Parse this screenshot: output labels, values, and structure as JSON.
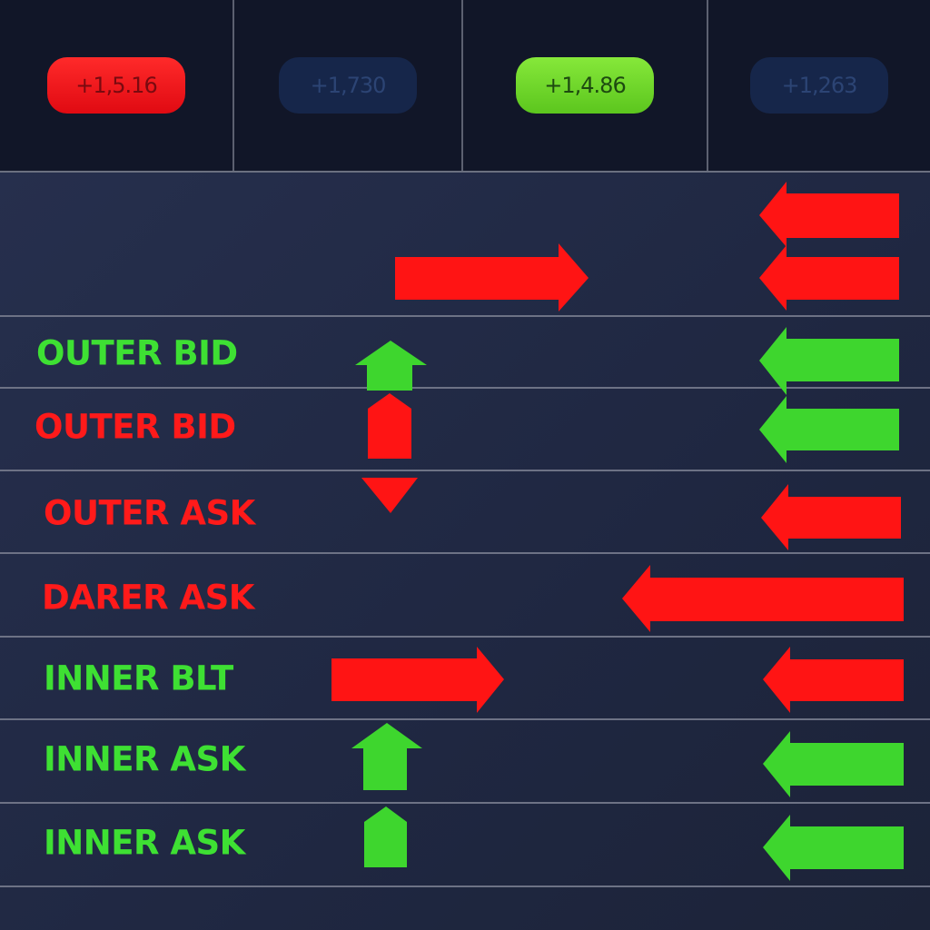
{
  "colors": {
    "background": "#111628",
    "panel": "#232b47",
    "red": "#ff1414",
    "green": "#3ed62e",
    "navy_badge": "#16264a",
    "divider": "#6d7285"
  },
  "header": {
    "tickers": [
      {
        "value": "+1,5.16",
        "style": "red"
      },
      {
        "value": "+1,730",
        "style": "navy"
      },
      {
        "value": "+1,4.86",
        "style": "green"
      },
      {
        "value": "+1,263",
        "style": "navy"
      }
    ]
  },
  "rows": [
    {
      "label": "",
      "color": "none",
      "icons": [
        "arrow-right-red",
        "arrow-left-red",
        "arrow-left-red"
      ]
    },
    {
      "label": "OUTER BID",
      "color": "green",
      "icons": [
        "arrow-up-green",
        "arrow-left-green"
      ]
    },
    {
      "label": "OUTER BID",
      "color": "red",
      "icons": [
        "arrow-up-red",
        "arrow-left-green"
      ]
    },
    {
      "label": "OUTER ASK",
      "color": "red",
      "icons": [
        "arrow-down-red",
        "arrow-left-red"
      ]
    },
    {
      "label": "DARER ASK",
      "color": "red",
      "icons": [
        "arrow-left-red-long"
      ]
    },
    {
      "label": "INNER BLT",
      "color": "green",
      "icons": [
        "arrow-right-red",
        "arrow-left-red"
      ]
    },
    {
      "label": "INNER ASK",
      "color": "green",
      "icons": [
        "arrow-up-green",
        "arrow-left-green"
      ]
    },
    {
      "label": "INNER ASK",
      "color": "green",
      "icons": [
        "arrow-up-green",
        "arrow-left-green"
      ]
    }
  ]
}
